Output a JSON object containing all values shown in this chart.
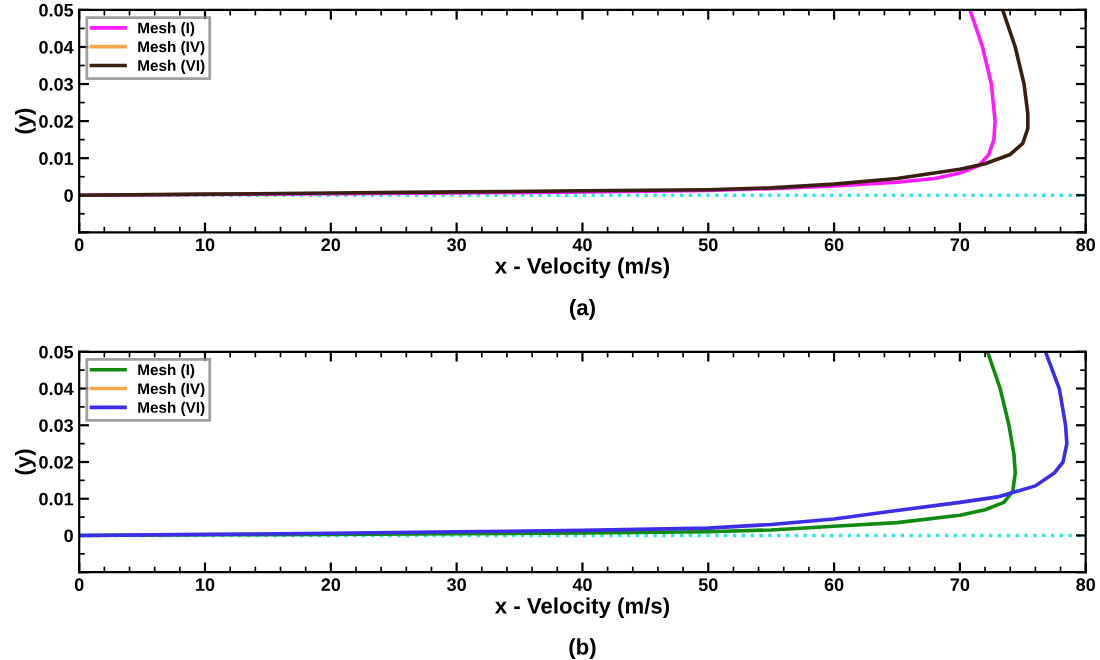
{
  "chart_data": [
    {
      "type": "line",
      "xlabel": "x - Velocity (m/s)",
      "ylabel": "(y)",
      "annotations": [
        "(a)"
      ],
      "xlim": [
        0,
        80
      ],
      "ylim": [
        -0.01,
        0.05
      ],
      "xticks": [
        0,
        10,
        20,
        30,
        40,
        50,
        60,
        70,
        80
      ],
      "yticks": [
        {
          "value": -0.01,
          "label": null
        },
        0,
        0.01,
        0.02,
        0.03,
        0.04,
        0.05
      ],
      "legend": "top left",
      "grid": false,
      "marker": "none",
      "line_style": "solid",
      "ref_lines": [
        {
          "axis": "y",
          "value": 0,
          "color": "#33e6e6",
          "line_style": "dotted"
        }
      ],
      "series": [
        {
          "name": "Mesh (I)",
          "color": "#ff1aff",
          "x": [
            0,
            10,
            20,
            30,
            40,
            50,
            55,
            60,
            65,
            68,
            70,
            71.5,
            72.3,
            72.7,
            72.8,
            72.5,
            71.8,
            70.8
          ],
          "values": [
            0,
            0.0002,
            0.0004,
            0.0006,
            0.0009,
            0.0013,
            0.0018,
            0.0025,
            0.0035,
            0.0045,
            0.006,
            0.008,
            0.011,
            0.015,
            0.02,
            0.03,
            0.04,
            0.05
          ]
        },
        {
          "name": "Mesh (IV)",
          "color": "#ffa64d",
          "values": [
            null
          ]
        },
        {
          "name": "Mesh (VI)",
          "color": "#3a2010",
          "x": [
            0,
            10,
            20,
            30,
            40,
            50,
            55,
            60,
            65,
            70,
            72,
            74,
            75,
            75.4,
            75.4,
            75.1,
            74.4,
            73.4
          ],
          "values": [
            0,
            0.0003,
            0.0006,
            0.0009,
            0.0012,
            0.0015,
            0.002,
            0.003,
            0.0045,
            0.007,
            0.0085,
            0.011,
            0.014,
            0.018,
            0.022,
            0.03,
            0.04,
            0.05
          ]
        }
      ]
    },
    {
      "type": "line",
      "xlabel": "x - Velocity (m/s)",
      "ylabel": "(y)",
      "annotations": [
        "(b)"
      ],
      "xlim": [
        0,
        80
      ],
      "ylim": [
        -0.01,
        0.05
      ],
      "xticks": [
        0,
        10,
        20,
        30,
        40,
        50,
        60,
        70,
        80
      ],
      "yticks": [
        {
          "value": -0.01,
          "label": null
        },
        0,
        0.01,
        0.02,
        0.03,
        0.04,
        0.05
      ],
      "legend": "top left",
      "grid": false,
      "marker": "none",
      "line_style": "solid",
      "ref_lines": [
        {
          "axis": "y",
          "value": 0,
          "color": "#33e6e6",
          "line_style": "dotted"
        }
      ],
      "series": [
        {
          "name": "Mesh (I)",
          "color": "#128a12",
          "x": [
            0,
            10,
            20,
            30,
            40,
            50,
            55,
            60,
            65,
            70,
            72,
            73.5,
            74.2,
            74.4,
            74.3,
            73.9,
            73.2,
            72.2
          ],
          "values": [
            0,
            0.0002,
            0.0003,
            0.0005,
            0.0007,
            0.001,
            0.0015,
            0.0025,
            0.0035,
            0.0055,
            0.007,
            0.009,
            0.012,
            0.017,
            0.022,
            0.03,
            0.04,
            0.05
          ]
        },
        {
          "name": "Mesh (IV)",
          "color": "#ffa64d",
          "values": [
            null
          ]
        },
        {
          "name": "Mesh (VI)",
          "color": "#3b2ee6",
          "x": [
            0,
            10,
            20,
            30,
            40,
            50,
            55,
            60,
            65,
            70,
            73,
            76,
            77.5,
            78.2,
            78.5,
            78.4,
            77.9,
            76.8
          ],
          "values": [
            0,
            0.0003,
            0.0006,
            0.001,
            0.0014,
            0.002,
            0.003,
            0.0045,
            0.0068,
            0.009,
            0.0105,
            0.0135,
            0.017,
            0.02,
            0.025,
            0.03,
            0.04,
            0.05
          ]
        }
      ]
    }
  ]
}
